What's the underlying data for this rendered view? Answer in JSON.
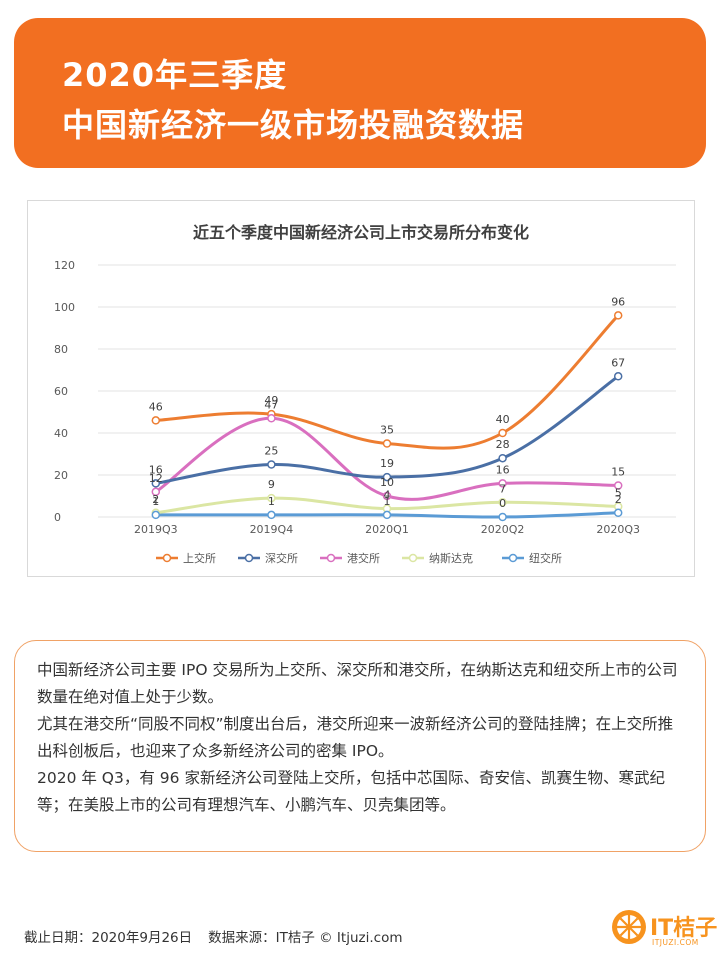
{
  "header": {
    "title_line1": "2020年三季度",
    "title_line2": "中国新经济一级市场投融资数据"
  },
  "chart_data": {
    "type": "line",
    "title": "近五个季度中国新经济公司上市交易所分布变化",
    "categories": [
      "2019Q3",
      "2019Q4",
      "2020Q1",
      "2020Q2",
      "2020Q3"
    ],
    "ylim": [
      0,
      120
    ],
    "yticks": [
      0,
      20,
      40,
      60,
      80,
      100,
      120
    ],
    "grid": true,
    "legend_position": "bottom",
    "series": [
      {
        "name": "上交所",
        "color": "#ed7d31",
        "values": [
          46,
          49,
          35,
          40,
          96
        ],
        "labels": [
          "46",
          "49",
          "35",
          "40",
          "96"
        ]
      },
      {
        "name": "深交所",
        "color": "#4a6fa5",
        "values": [
          16,
          25,
          19,
          28,
          67
        ],
        "labels": [
          "16",
          "25",
          "19",
          "28",
          "67"
        ]
      },
      {
        "name": "港交所",
        "color": "#d96fbf",
        "values": [
          12,
          47,
          10,
          16,
          15
        ],
        "labels": [
          "12",
          "47",
          "10",
          "16",
          "15"
        ]
      },
      {
        "name": "纳斯达克",
        "color": "#dbe6a3",
        "values": [
          2,
          9,
          4,
          7,
          5
        ],
        "labels": [
          "2",
          "9",
          "4",
          "7",
          "5"
        ]
      },
      {
        "name": "纽交所",
        "color": "#5b9bd5",
        "values": [
          1,
          1,
          1,
          0,
          2
        ],
        "labels": [
          "1",
          "1",
          "1",
          "0",
          "2"
        ]
      }
    ]
  },
  "body_text": {
    "p1": "中国新经济公司主要 IPO 交易所为上交所、深交所和港交所，在纳斯达克和纽交所上市的公司数量在绝对值上处于少数。",
    "p2": "尤其在港交所“同股不同权”制度出台后，港交所迎来一波新经济公司的登陆挂牌；在上交所推出科创板后，也迎来了众多新经济公司的密集 IPO。",
    "p3": "2020 年 Q3，有 96 家新经济公司登陆上交所，包括中芯国际、奇安信、凯赛生物、寒武纪等；在美股上市的公司有理想汽车、小鹏汽车、贝壳集团等。"
  },
  "footer": {
    "date": "截止日期：2020年9月26日",
    "source": "数据来源：IT桔子 © Itjuzi.com"
  },
  "logo": {
    "name": "IT桔子",
    "sub": "ITJUZI.COM",
    "color": "#f7931e",
    "icon": "orange-slice-icon"
  }
}
